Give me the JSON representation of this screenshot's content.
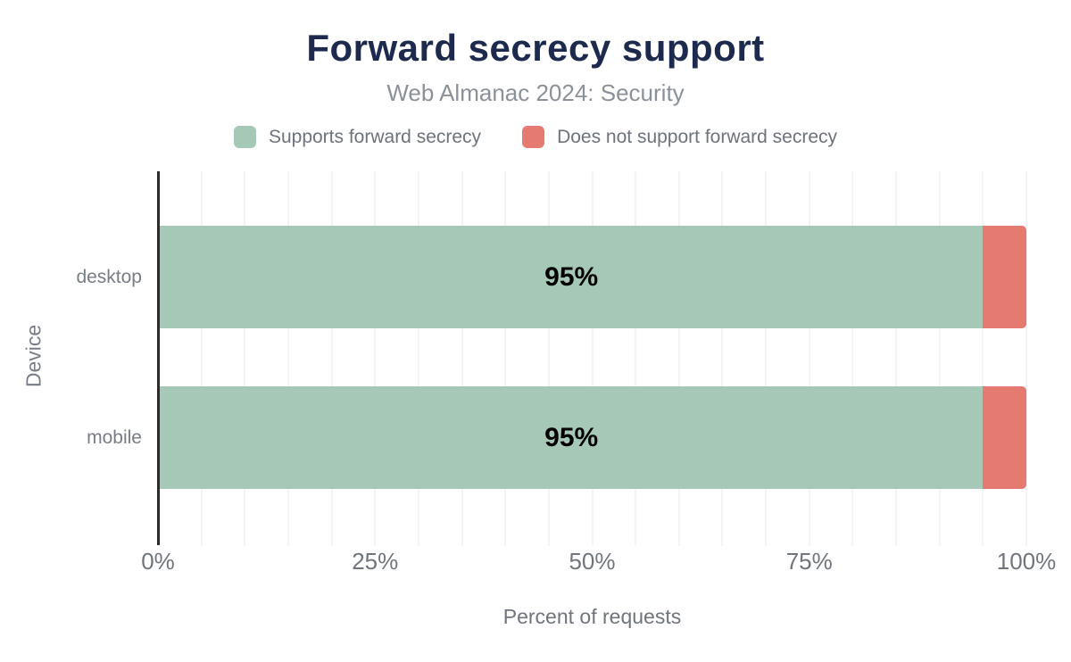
{
  "chart_data": {
    "type": "bar",
    "orientation": "horizontal",
    "stacked": true,
    "title": "Forward secrecy support",
    "subtitle": "Web Almanac 2024: Security",
    "categories": [
      "desktop",
      "mobile"
    ],
    "series": [
      {
        "name": "Supports forward secrecy",
        "values": [
          95,
          95
        ],
        "color": "#a5c9b6"
      },
      {
        "name": "Does not support forward secrecy",
        "values": [
          5,
          5
        ],
        "color": "#e57a71"
      }
    ],
    "bar_labels": [
      "95%",
      "95%"
    ],
    "xlabel": "Percent of requests",
    "ylabel": "Device",
    "xlim": [
      0,
      100
    ],
    "x_ticks": [
      "0%",
      "25%",
      "50%",
      "75%",
      "100%"
    ],
    "grid_interval_pct": 5,
    "grid": true,
    "legend_position": "top"
  },
  "colors": {
    "title": "#1d2a4e",
    "subtitle": "#8b9199",
    "axis_text": "#70757d",
    "category_text": "#787d85",
    "bar_label": "#000000",
    "gridline": "#f4f4f4",
    "axis_line": "#2b2b2b",
    "background": "#ffffff"
  }
}
